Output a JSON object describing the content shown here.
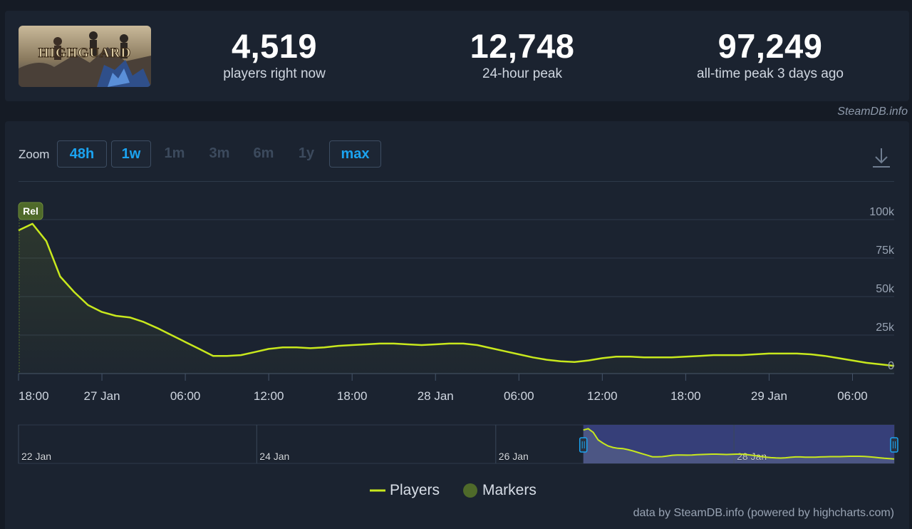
{
  "stats": [
    {
      "value": "4,519",
      "label": "players right now"
    },
    {
      "value": "12,748",
      "label": "24-hour peak"
    },
    {
      "value": "97,249",
      "label": "all-time peak 3 days ago"
    }
  ],
  "game": {
    "logo_text": "HIGHGUARD"
  },
  "credit_top": "SteamDB.info",
  "zoom": {
    "label": "Zoom",
    "buttons": [
      {
        "label": "48h",
        "enabled": true
      },
      {
        "label": "1w",
        "enabled": true
      },
      {
        "label": "1m",
        "enabled": false
      },
      {
        "label": "3m",
        "enabled": false
      },
      {
        "label": "6m",
        "enabled": false
      },
      {
        "label": "1y",
        "enabled": false
      },
      {
        "label": "max",
        "enabled": true
      }
    ]
  },
  "legend": {
    "players": "Players",
    "markers": "Markers"
  },
  "credit_bottom": "data by SteamDB.info (powered by highcharts.com)",
  "colors": {
    "series": "#c8e81d",
    "marker": "#4f6a2a",
    "accent": "#1ba3f0"
  },
  "chart_data": {
    "type": "line",
    "x_unit": "hours from 26 Jan 18:00",
    "xlabel": "",
    "ylabel": "",
    "ylim": [
      0,
      100000
    ],
    "x_range": [
      0,
      63
    ],
    "x_ticks": [
      {
        "x": 0,
        "label": "18:00"
      },
      {
        "x": 6,
        "label": "27 Jan"
      },
      {
        "x": 12,
        "label": "06:00"
      },
      {
        "x": 18,
        "label": "12:00"
      },
      {
        "x": 24,
        "label": "18:00"
      },
      {
        "x": 30,
        "label": "28 Jan"
      },
      {
        "x": 36,
        "label": "06:00"
      },
      {
        "x": 42,
        "label": "12:00"
      },
      {
        "x": 48,
        "label": "18:00"
      },
      {
        "x": 54,
        "label": "29 Jan"
      },
      {
        "x": 60,
        "label": "06:00"
      }
    ],
    "y_ticks": [
      {
        "y": 0,
        "label": "0"
      },
      {
        "y": 25000,
        "label": "25k"
      },
      {
        "y": 50000,
        "label": "50k"
      },
      {
        "y": 75000,
        "label": "75k"
      },
      {
        "y": 100000,
        "label": "100k"
      }
    ],
    "grid": true,
    "legend_position": "bottom-center",
    "series": [
      {
        "name": "Players",
        "x": [
          0,
          1,
          2,
          3,
          4,
          5,
          6,
          7,
          8,
          9,
          10,
          11,
          12,
          13,
          14,
          15,
          16,
          17,
          18,
          19,
          20,
          21,
          22,
          23,
          24,
          25,
          26,
          27,
          28,
          29,
          30,
          31,
          32,
          33,
          34,
          35,
          36,
          37,
          38,
          39,
          40,
          41,
          42,
          43,
          44,
          45,
          46,
          47,
          48,
          49,
          50,
          51,
          52,
          53,
          54,
          55,
          56,
          57,
          58,
          59,
          60,
          61,
          62,
          63
        ],
        "values": [
          93000,
          97249,
          86000,
          63000,
          53000,
          44500,
          40000,
          37500,
          36500,
          33500,
          29500,
          25000,
          20500,
          16000,
          11500,
          11500,
          12000,
          14000,
          16000,
          17000,
          17000,
          16500,
          17000,
          18000,
          18500,
          19000,
          19500,
          19500,
          19000,
          18500,
          19000,
          19500,
          19500,
          18500,
          16500,
          14500,
          12500,
          10500,
          9000,
          8000,
          7500,
          8500,
          10000,
          11000,
          11000,
          10500,
          10500,
          10500,
          11000,
          11500,
          12000,
          12000,
          12000,
          12500,
          13000,
          13000,
          13000,
          12500,
          11500,
          10000,
          8500,
          7000,
          6000,
          5000
        ]
      }
    ],
    "markers": [
      {
        "x": 0,
        "label": "Rel"
      }
    ],
    "navigator": {
      "labels": [
        {
          "label": "22 Jan",
          "frac": 0.0
        },
        {
          "label": "24 Jan",
          "frac": 0.272
        },
        {
          "label": "26 Jan",
          "frac": 0.545
        },
        {
          "label": "28 Jan",
          "frac": 0.817
        }
      ],
      "selected_from_frac": 0.645,
      "selected_to_frac": 1.0
    }
  }
}
